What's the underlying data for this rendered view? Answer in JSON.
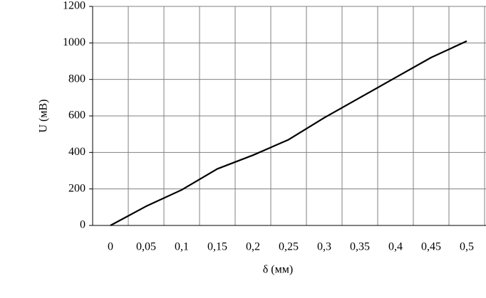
{
  "chart_data": {
    "type": "line",
    "x_label": "δ (мм)",
    "y_label": "U (мВ)",
    "categories": [
      "0",
      "0,05",
      "0,1",
      "0,15",
      "0,2",
      "0,25",
      "0,3",
      "0,35",
      "0,4",
      "0,45",
      "0,5"
    ],
    "series": [
      {
        "color": "#000000",
        "values": [
          0,
          105,
          195,
          310,
          385,
          470,
          590,
          700,
          810,
          920,
          1010
        ]
      }
    ],
    "ylim": [
      0,
      1200
    ],
    "yticks": [
      0,
      200,
      400,
      600,
      800,
      1000,
      1200
    ],
    "grid": true
  }
}
